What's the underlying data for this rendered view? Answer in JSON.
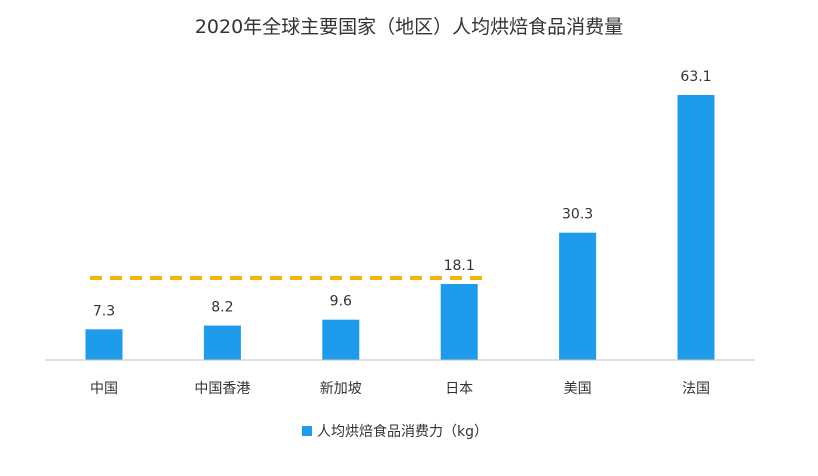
{
  "chart_data": {
    "type": "bar",
    "title": "2020年全球主要国家（地区）人均烘焙食品消费量",
    "categories": [
      "中国",
      "中国香港",
      "新加坡",
      "日本",
      "美国",
      "法国"
    ],
    "series": [
      {
        "name": "人均烘焙食品消费力（kg）",
        "values": [
          7.3,
          8.2,
          9.6,
          18.1,
          30.3,
          63.1
        ],
        "color": "#1e9bea"
      }
    ],
    "data_labels": [
      "7.3",
      "8.2",
      "9.6",
      "18.1",
      "30.3",
      "63.1"
    ],
    "reference_line": {
      "value": 18.1,
      "from_category": "中国",
      "to_category": "日本",
      "style": "dashed",
      "color": "#f4b400"
    },
    "ylim": [
      0,
      63.1
    ],
    "xlabel": "",
    "ylabel": "",
    "grid": false,
    "legend_position": "bottom"
  }
}
